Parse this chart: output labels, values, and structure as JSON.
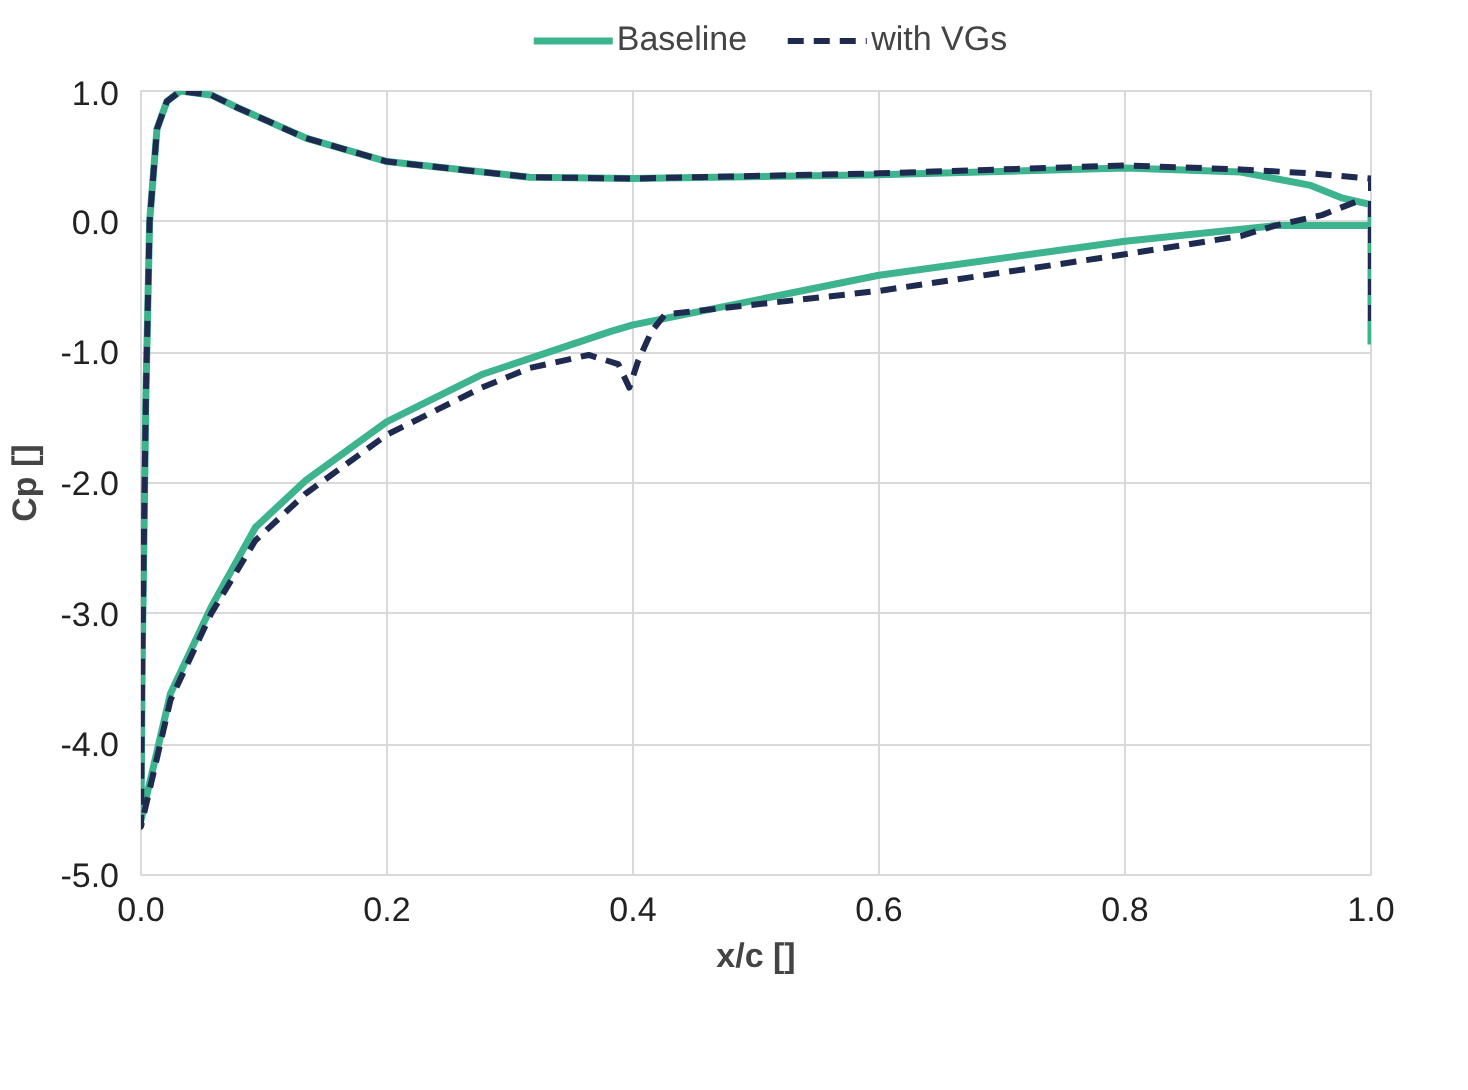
{
  "chart_data": {
    "type": "line",
    "xlabel": "x/c []",
    "ylabel": "Cp []",
    "xlim": [
      0,
      1
    ],
    "ylim": [
      -5,
      1
    ],
    "xticks": [
      {
        "value": 0,
        "label": "0.0"
      },
      {
        "value": 0.2,
        "label": "0.2"
      },
      {
        "value": 0.4,
        "label": "0.4"
      },
      {
        "value": 0.6,
        "label": "0.6"
      },
      {
        "value": 0.8,
        "label": "0.8"
      },
      {
        "value": 1,
        "label": "1.0"
      }
    ],
    "yticks": [
      {
        "value": -5,
        "label": "-5.0"
      },
      {
        "value": -4,
        "label": "-4.0"
      },
      {
        "value": -3,
        "label": "-3.0"
      },
      {
        "value": -2,
        "label": "-2.0"
      },
      {
        "value": -1,
        "label": "-1.0"
      },
      {
        "value": 0,
        "label": "0.0"
      },
      {
        "value": 1,
        "label": "1.0"
      }
    ],
    "grid": true,
    "legend": "top",
    "marker": "none",
    "series": [
      {
        "name": "Baseline",
        "color": "#3db38e",
        "line_style": "solid",
        "x": [
          1.0,
          1.0,
          0.977,
          0.95,
          0.894,
          0.8,
          0.6,
          0.4,
          0.316,
          0.2,
          0.134,
          0.079,
          0.057,
          0.032,
          0.021,
          0.013,
          0.007,
          0.004,
          0.001,
          0.0,
          0.024,
          0.057,
          0.093,
          0.134,
          0.2,
          0.277,
          0.382,
          0.4,
          0.6,
          0.8,
          0.922,
          1.0
        ],
        "values": [
          -0.94,
          0.13,
          0.18,
          0.28,
          0.38,
          0.41,
          0.36,
          0.33,
          0.34,
          0.46,
          0.64,
          0.87,
          0.97,
          1.0,
          0.92,
          0.71,
          0.0,
          -1.32,
          -3.36,
          -4.58,
          -3.61,
          -2.95,
          -2.34,
          -1.98,
          -1.53,
          -1.17,
          -0.84,
          -0.79,
          -0.41,
          -0.15,
          -0.03,
          -0.03
        ]
      },
      {
        "name": "with VGs",
        "color": "#1f2a50",
        "line_style": "dashed",
        "x": [
          1.0,
          1.0,
          0.95,
          0.894,
          0.8,
          0.6,
          0.4,
          0.316,
          0.2,
          0.134,
          0.079,
          0.057,
          0.032,
          0.021,
          0.013,
          0.007,
          0.004,
          0.001,
          0.0,
          0.024,
          0.057,
          0.093,
          0.134,
          0.2,
          0.277,
          0.316,
          0.364,
          0.388,
          0.397,
          0.404,
          0.415,
          0.426,
          0.6,
          0.8,
          0.894,
          0.922,
          0.96,
          0.99
        ],
        "values": [
          -0.76,
          0.33,
          0.37,
          0.4,
          0.43,
          0.37,
          0.33,
          0.34,
          0.46,
          0.64,
          0.87,
          0.97,
          1.0,
          0.92,
          0.71,
          0.0,
          -1.32,
          -3.36,
          -4.63,
          -3.66,
          -3.0,
          -2.44,
          -2.08,
          -1.63,
          -1.27,
          -1.12,
          -1.02,
          -1.09,
          -1.27,
          -1.07,
          -0.84,
          -0.71,
          -0.53,
          -0.25,
          -0.11,
          -0.03,
          0.05,
          0.16
        ]
      }
    ]
  }
}
